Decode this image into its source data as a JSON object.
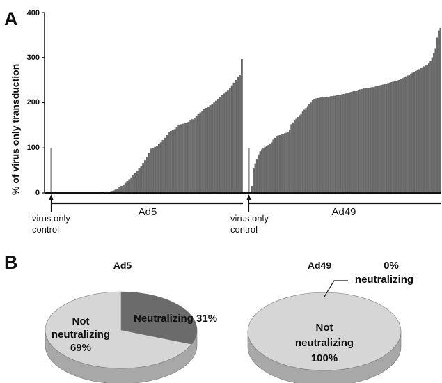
{
  "figure": {
    "panel_a_letter": "A",
    "panel_b_letter": "B"
  },
  "colors": {
    "bar": "#6e6e6e",
    "bar_edge": "#3a3a3a",
    "control_bar": "#9a9a9a",
    "neutralizing": "#6b6b6b",
    "not_neutralizing": "#d6d6d6",
    "pie_side_dark": "#8a8a8a",
    "pie_side_light": "#a8a8a8",
    "axis": "#111111"
  },
  "chart_data": [
    {
      "type": "bar",
      "ylabel": "% of virus only transduction",
      "ylim": [
        0,
        400
      ],
      "yticks": [
        0,
        100,
        200,
        300,
        400
      ],
      "groups": [
        {
          "name": "Ad5",
          "control_label_lines": [
            "virus only",
            "control"
          ],
          "control_value": 100,
          "values": [
            0,
            0,
            0,
            0,
            0,
            0,
            0,
            0,
            0,
            0,
            0,
            0,
            0,
            0,
            0,
            0,
            0,
            0,
            0,
            0,
            0,
            0,
            0,
            1,
            1,
            1,
            2,
            2,
            3,
            4,
            5,
            7,
            9,
            12,
            15,
            18,
            22,
            26,
            30,
            34,
            38,
            43,
            48,
            55,
            60,
            66,
            72,
            80,
            88,
            98,
            100,
            102,
            104,
            108,
            112,
            117,
            122,
            128,
            135,
            137,
            139,
            141,
            146,
            150,
            152,
            153,
            154,
            155,
            157,
            160,
            163,
            166,
            170,
            174,
            178,
            182,
            185,
            188,
            191,
            194,
            197,
            200,
            204,
            208,
            212,
            216,
            220,
            224,
            228,
            233,
            238,
            244,
            250,
            256,
            262,
            296
          ]
        },
        {
          "name": "Ad49",
          "control_label_lines": [
            "virus only",
            "control"
          ],
          "control_value": 100,
          "values": [
            15,
            55,
            65,
            75,
            85,
            92,
            96,
            100,
            102,
            104,
            106,
            108,
            112,
            118,
            122,
            125,
            127,
            128,
            130,
            131,
            132,
            133,
            135,
            140,
            152,
            156,
            160,
            164,
            168,
            172,
            176,
            180,
            184,
            188,
            192,
            196,
            200,
            205,
            208,
            209,
            210,
            210,
            211,
            211,
            212,
            212,
            213,
            213,
            214,
            214,
            215,
            215,
            216,
            216,
            217,
            218,
            219,
            220,
            221,
            222,
            223,
            224,
            225,
            226,
            227,
            228,
            229,
            230,
            231,
            232,
            232,
            233,
            233,
            234,
            234,
            235,
            236,
            237,
            238,
            239,
            240,
            241,
            242,
            243,
            244,
            245,
            246,
            247,
            248,
            249,
            250,
            252,
            254,
            256,
            258,
            260,
            262,
            264,
            266,
            268,
            270,
            272,
            274,
            276,
            278,
            280,
            282,
            284,
            288,
            292,
            300,
            310,
            320,
            345,
            360,
            366
          ]
        }
      ]
    },
    {
      "type": "pie",
      "title": "Ad5",
      "slices": [
        {
          "name": "Neutralizing",
          "value": 31,
          "label": "Neutralizing 31%"
        },
        {
          "name": "Not neutralizing",
          "value": 69,
          "label_lines": [
            "Not",
            "neutralizing",
            "69%"
          ]
        }
      ]
    },
    {
      "type": "pie",
      "title": "Ad49",
      "slices": [
        {
          "name": "Neutralizing",
          "value": 0,
          "label_lines": [
            "0%",
            "neutralizing"
          ]
        },
        {
          "name": "Not neutralizing",
          "value": 100,
          "label_lines": [
            "Not",
            "neutralizing",
            "100%"
          ]
        }
      ]
    }
  ]
}
